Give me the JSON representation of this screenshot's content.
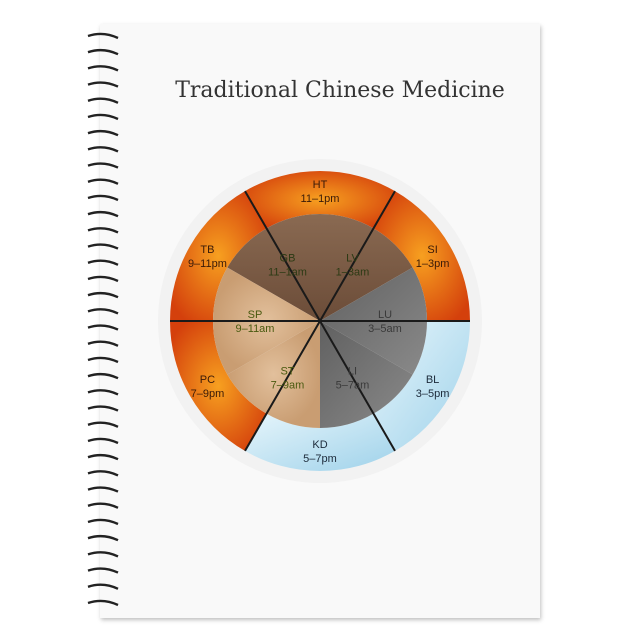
{
  "title": "Traditional Chinese Medicine",
  "colors": {
    "fire": "#e85a12",
    "water": "#bfe3f0",
    "wood": "#7a5a44",
    "earth": "#d6b08a",
    "metal": "#707070"
  },
  "outer": [
    {
      "organ": "HT",
      "time": "11–1pm",
      "element": "fire"
    },
    {
      "organ": "SI",
      "time": "1–3pm",
      "element": "fire"
    },
    {
      "organ": "BL",
      "time": "3–5pm",
      "element": "water"
    },
    {
      "organ": "KD",
      "time": "5–7pm",
      "element": "water"
    },
    {
      "organ": "PC",
      "time": "7–9pm",
      "element": "fire"
    },
    {
      "organ": "TB",
      "time": "9–11pm",
      "element": "fire"
    }
  ],
  "inner": [
    {
      "organ": "GB",
      "time": "11–1am",
      "element": "wood"
    },
    {
      "organ": "LV",
      "time": "1–3am",
      "element": "wood"
    },
    {
      "organ": "LU",
      "time": "3–5am",
      "element": "metal"
    },
    {
      "organ": "LI",
      "time": "5–7am",
      "element": "metal"
    },
    {
      "organ": "ST",
      "time": "7–9am",
      "element": "earth"
    },
    {
      "organ": "SP",
      "time": "9–11am",
      "element": "earth"
    }
  ]
}
